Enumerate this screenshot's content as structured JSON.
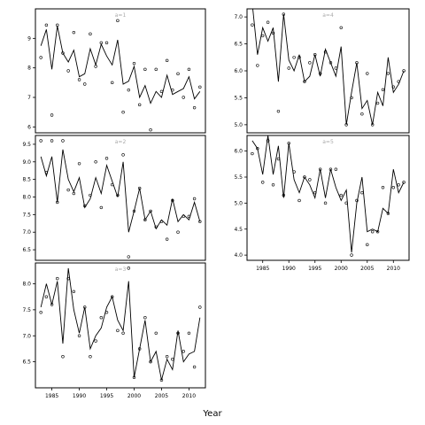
{
  "chart_data": {
    "type": "line",
    "xlabel": "Year",
    "x_ticks": [
      1985,
      1990,
      1995,
      2000,
      2005,
      2010
    ],
    "x_range": [
      1982,
      2013
    ],
    "line_color": "#000000",
    "panels": [
      {
        "name": "a=1",
        "strip_label": "a=1",
        "y_range": [
          5.8,
          10.0
        ],
        "y_ticks": [
          6,
          7,
          8,
          9
        ],
        "line_x": [
          1983,
          1984,
          1985,
          1986,
          1987,
          1988,
          1989,
          1990,
          1991,
          1992,
          1993,
          1994,
          1995,
          1996,
          1997,
          1998,
          1999,
          2000,
          2001,
          2002,
          2003,
          2004,
          2005,
          2006,
          2007,
          2008,
          2009,
          2010,
          2011,
          2012
        ],
        "line_y": [
          8.75,
          9.3,
          7.95,
          9.42,
          8.5,
          8.2,
          8.6,
          7.7,
          7.8,
          8.65,
          8.1,
          8.8,
          8.4,
          8.1,
          8.95,
          7.45,
          7.55,
          8.05,
          7.0,
          7.4,
          6.8,
          7.2,
          7.0,
          7.75,
          7.1,
          7.2,
          7.3,
          7.7,
          6.95,
          7.2
        ],
        "points_x": [
          1983,
          1984,
          1985,
          1986,
          1987,
          1988,
          1989,
          1990,
          1991,
          1992,
          1993,
          1994,
          1995,
          1996,
          1997,
          1998,
          1999,
          2000,
          2001,
          2002,
          2003,
          2004,
          2005,
          2006,
          2007,
          2008,
          2009,
          2010,
          2011,
          2012
        ],
        "points_y": [
          8.35,
          9.45,
          6.4,
          9.45,
          8.5,
          7.9,
          9.2,
          7.6,
          7.45,
          9.15,
          8.05,
          8.85,
          8.85,
          7.5,
          9.6,
          6.5,
          7.25,
          8.15,
          6.75,
          7.95,
          5.9,
          7.95,
          7.2,
          8.25,
          7.25,
          7.8,
          7.0,
          7.95,
          6.65,
          7.35
        ]
      },
      {
        "name": "a=2",
        "strip_label": "a=2",
        "y_range": [
          6.2,
          9.75
        ],
        "y_ticks": [
          6.5,
          7.0,
          7.5,
          8.0,
          8.5,
          9.0,
          9.5
        ],
        "line_x": [
          1983,
          1984,
          1985,
          1986,
          1987,
          1988,
          1989,
          1990,
          1991,
          1992,
          1993,
          1994,
          1995,
          1996,
          1997,
          1998,
          1999,
          2000,
          2001,
          2002,
          2003,
          2004,
          2005,
          2006,
          2007,
          2008,
          2009,
          2010,
          2011,
          2012
        ],
        "line_y": [
          9.15,
          8.6,
          9.15,
          7.85,
          9.35,
          8.5,
          8.15,
          8.55,
          7.7,
          7.95,
          8.55,
          8.1,
          8.9,
          8.45,
          8.0,
          9.0,
          7.0,
          7.6,
          8.25,
          7.35,
          7.6,
          7.1,
          7.35,
          7.2,
          7.95,
          7.3,
          7.5,
          7.35,
          7.85,
          7.3
        ],
        "points_x": [
          1983,
          1984,
          1985,
          1986,
          1987,
          1988,
          1989,
          1990,
          1991,
          1992,
          1993,
          1994,
          1995,
          1996,
          1997,
          1998,
          1999,
          2000,
          2001,
          2002,
          2003,
          2004,
          2005,
          2006,
          2007,
          2008,
          2009,
          2010,
          2011,
          2012
        ],
        "points_y": [
          9.6,
          8.7,
          9.6,
          7.85,
          9.6,
          8.2,
          8.1,
          8.95,
          7.75,
          8.05,
          9.0,
          7.7,
          9.1,
          8.35,
          8.05,
          9.2,
          6.3,
          7.6,
          8.25,
          7.35,
          7.6,
          7.15,
          7.3,
          6.8,
          7.9,
          7.0,
          7.45,
          7.45,
          7.95,
          7.3
        ]
      },
      {
        "name": "a=3",
        "strip_label": "a=3",
        "y_range": [
          6.0,
          8.4
        ],
        "y_ticks": [
          6.5,
          7.0,
          7.5,
          8.0
        ],
        "line_x": [
          1983,
          1984,
          1985,
          1986,
          1987,
          1988,
          1989,
          1990,
          1991,
          1992,
          1993,
          1994,
          1995,
          1996,
          1997,
          1998,
          1999,
          2000,
          2001,
          2002,
          2003,
          2004,
          2005,
          2006,
          2007,
          2008,
          2009,
          2010,
          2011,
          2012
        ],
        "line_y": [
          7.55,
          8.0,
          7.6,
          8.05,
          6.85,
          8.3,
          7.5,
          7.05,
          7.55,
          6.75,
          7.0,
          7.15,
          7.55,
          7.75,
          7.3,
          7.1,
          8.05,
          6.2,
          6.75,
          7.3,
          6.5,
          6.7,
          6.15,
          6.55,
          6.35,
          7.1,
          6.5,
          6.65,
          6.7,
          7.35
        ],
        "points_x": [
          1983,
          1984,
          1985,
          1986,
          1987,
          1988,
          1989,
          1990,
          1991,
          1992,
          1993,
          1994,
          1995,
          1996,
          1997,
          1998,
          1999,
          2000,
          2001,
          2002,
          2003,
          2004,
          2005,
          2006,
          2007,
          2008,
          2009,
          2010,
          2011,
          2012
        ],
        "points_y": [
          7.45,
          7.75,
          7.6,
          8.1,
          6.6,
          8.1,
          7.85,
          7.0,
          7.55,
          6.6,
          6.9,
          7.35,
          7.45,
          7.75,
          7.1,
          7.05,
          8.3,
          6.2,
          6.75,
          7.35,
          6.5,
          7.05,
          6.15,
          6.6,
          6.55,
          7.05,
          6.7,
          7.05,
          6.4,
          7.55
        ]
      },
      {
        "name": "a=4",
        "strip_label": "a=4",
        "y_range": [
          4.85,
          7.15
        ],
        "y_ticks": [
          5.0,
          5.5,
          6.0,
          6.5,
          7.0
        ],
        "line_x": [
          1983,
          1984,
          1985,
          1986,
          1987,
          1988,
          1989,
          1990,
          1991,
          1992,
          1993,
          1994,
          1995,
          1996,
          1997,
          1998,
          1999,
          2000,
          2001,
          2002,
          2003,
          2004,
          2005,
          2006,
          2007,
          2008,
          2009,
          2010,
          2011,
          2012
        ],
        "line_y": [
          7.25,
          6.3,
          6.8,
          6.55,
          6.8,
          5.8,
          7.05,
          6.2,
          6.0,
          6.3,
          5.8,
          5.9,
          6.3,
          5.9,
          6.4,
          6.15,
          5.9,
          6.45,
          5.0,
          5.6,
          6.15,
          5.3,
          5.45,
          5.0,
          5.6,
          5.35,
          6.25,
          5.6,
          5.75,
          6.0
        ],
        "points_x": [
          1983,
          1984,
          1985,
          1986,
          1987,
          1988,
          1989,
          1990,
          1991,
          1992,
          1993,
          1994,
          1995,
          1996,
          1997,
          1998,
          1999,
          2000,
          2001,
          2002,
          2003,
          2004,
          2005,
          2006,
          2007,
          2008,
          2009,
          2010,
          2011,
          2012
        ],
        "points_y": [
          6.85,
          6.1,
          6.65,
          6.9,
          6.7,
          5.25,
          7.05,
          6.05,
          6.25,
          6.25,
          5.8,
          6.15,
          6.3,
          5.95,
          6.35,
          6.15,
          6.05,
          6.8,
          5.0,
          5.5,
          6.15,
          5.2,
          5.95,
          5.0,
          5.4,
          5.65,
          5.95,
          5.7,
          5.8,
          6.0
        ]
      },
      {
        "name": "a=5",
        "strip_label": "a=5",
        "y_range": [
          3.9,
          6.3
        ],
        "y_ticks": [
          4.0,
          4.5,
          5.0,
          5.5,
          6.0
        ],
        "line_x": [
          1983,
          1984,
          1985,
          1986,
          1987,
          1988,
          1989,
          1990,
          1991,
          1992,
          1993,
          1994,
          1995,
          1996,
          1997,
          1998,
          1999,
          2000,
          2001,
          2002,
          2003,
          2004,
          2005,
          2006,
          2007,
          2008,
          2009,
          2010,
          2011,
          2012
        ],
        "line_y": [
          6.2,
          6.05,
          5.55,
          6.3,
          5.55,
          6.1,
          5.1,
          6.15,
          5.45,
          5.2,
          5.5,
          5.35,
          5.1,
          5.65,
          5.1,
          5.65,
          5.3,
          5.05,
          5.25,
          4.05,
          5.0,
          5.5,
          4.45,
          4.5,
          4.45,
          4.9,
          4.8,
          5.65,
          5.2,
          5.4
        ],
        "points_x": [
          1983,
          1984,
          1985,
          1986,
          1987,
          1988,
          1989,
          1990,
          1991,
          1992,
          1993,
          1994,
          1995,
          1996,
          1997,
          1998,
          1999,
          2000,
          2001,
          2002,
          2003,
          2004,
          2005,
          2006,
          2007,
          2008,
          2009,
          2010,
          2011,
          2012
        ],
        "points_y": [
          5.95,
          6.05,
          5.4,
          6.2,
          5.35,
          5.85,
          5.15,
          6.15,
          5.6,
          5.05,
          5.5,
          5.45,
          5.2,
          5.65,
          5.0,
          5.65,
          5.65,
          5.15,
          5.0,
          4.0,
          5.05,
          5.2,
          4.2,
          4.45,
          4.45,
          5.3,
          4.8,
          5.3,
          5.35,
          5.4
        ]
      }
    ]
  }
}
